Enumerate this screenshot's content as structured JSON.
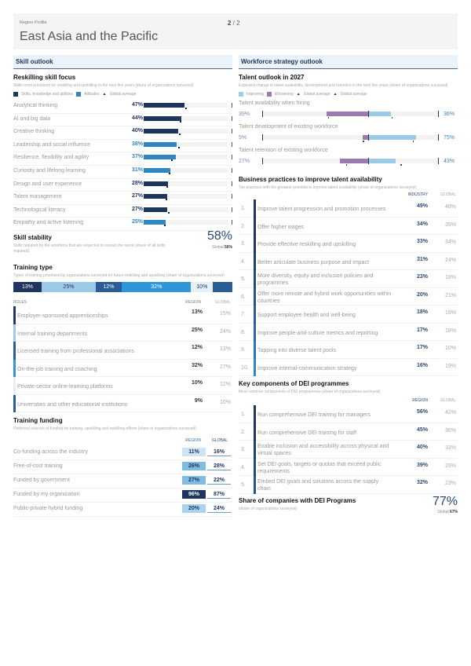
{
  "header": {
    "kicker": "Region Profile",
    "title": "East Asia and the Pacific",
    "page_current": "2",
    "page_sep": " / 2"
  },
  "skill_outlook": {
    "section_title": "Skill outlook",
    "reskilling": {
      "title": "Reskilling skill focus",
      "subtitle": "Skills most prioritized for reskilling and upskilling in the next five years (share of organizations surveyed)",
      "legend": [
        {
          "label": "Skills, knowledge and abilities",
          "color": "#1e3560"
        },
        {
          "label": "Attitudes",
          "color": "#2f86c4"
        },
        {
          "label": "Global average",
          "marker": "▲"
        }
      ],
      "items": [
        {
          "label": "Analytical thinking",
          "value": 47,
          "value_text": "47%",
          "global": 48,
          "type": "ska"
        },
        {
          "label": "AI and big data",
          "value": 44,
          "value_text": "44%",
          "global": 42,
          "type": "ska"
        },
        {
          "label": "Creative thinking",
          "value": 40,
          "value_text": "40%",
          "global": 41,
          "type": "ska"
        },
        {
          "label": "Leadership and social influence",
          "value": 38,
          "value_text": "38%",
          "global": 40,
          "type": "att"
        },
        {
          "label": "Resilience, flexibility and agility",
          "value": 37,
          "value_text": "37%",
          "global": 32,
          "type": "att"
        },
        {
          "label": "Curiosity and lifelong learning",
          "value": 31,
          "value_text": "31%",
          "global": 29,
          "type": "att"
        },
        {
          "label": "Design and user experience",
          "value": 28,
          "value_text": "28%",
          "global": 26,
          "type": "ska"
        },
        {
          "label": "Talent management",
          "value": 27,
          "value_text": "27%",
          "global": 25,
          "type": "ska"
        },
        {
          "label": "Technological literacy",
          "value": 27,
          "value_text": "27%",
          "global": 28,
          "type": "ska"
        },
        {
          "label": "Empathy and active listening",
          "value": 25,
          "value_text": "25%",
          "global": 24,
          "type": "att"
        }
      ],
      "colors": {
        "ska": "#1e3560",
        "att": "#2f86c4"
      }
    },
    "stability": {
      "title": "Skill stability",
      "subtitle": "Skills required by the workforce that are expected to remain the same (share of all skills required)",
      "value": "58%",
      "global_label": "Global",
      "global_value": "56%"
    },
    "training_type": {
      "title": "Training type",
      "subtitle": "Types of training prioritized by organizations surveyed for future reskilling and upskilling (share of organizations surveyed)",
      "segments": [
        {
          "value": 13,
          "label": "13%",
          "color": "#1e3560",
          "text": "#ffffff"
        },
        {
          "value": 25,
          "label": "25%",
          "color": "#9ccbe8",
          "text": "#1e3560"
        },
        {
          "value": 12,
          "label": "12%",
          "color": "#2a5c96",
          "text": "#ffffff"
        },
        {
          "value": 32,
          "label": "32%",
          "color": "#2f96d8",
          "text": "#ffffff"
        },
        {
          "value": 10,
          "label": "10%",
          "color": "#e6eef6",
          "text": "#1e3560"
        },
        {
          "value": 9,
          "label": "",
          "color": "#2a5c96",
          "text": "#ffffff"
        }
      ],
      "col_roles": "ROLES",
      "col_region": "REGION",
      "col_global": "GLOBAL",
      "rows": [
        {
          "label": "Employer-sponsored apprenticeships",
          "region": "13%",
          "global": "15%",
          "color": "#1e3560"
        },
        {
          "label": "Internal training departments",
          "region": "25%",
          "global": "24%",
          "color": "#9ccbe8"
        },
        {
          "label": "Licensed training from professional associations",
          "region": "12%",
          "global": "13%",
          "color": "#2a5c96"
        },
        {
          "label": "On-the-job training and coaching",
          "region": "32%",
          "global": "27%",
          "color": "#2f96d8"
        },
        {
          "label": "Private-sector online-learning platforms",
          "region": "10%",
          "global": "12%",
          "color": "#e6eef6"
        },
        {
          "label": "Universities and other educational institutions",
          "region": "9%",
          "global": "10%",
          "color": "#2a5c96"
        }
      ]
    },
    "funding": {
      "title": "Training funding",
      "subtitle": "Preferred sources of funding for training, upskilling and reskilling efforts (share of organizations surveyed)",
      "col_region": "REGION",
      "col_global": "GLOBAL",
      "rows": [
        {
          "label": "Co-funding across the industry",
          "region": "11%",
          "global": "16%",
          "bg": "#cfe4f2",
          "fg": "#1e3560"
        },
        {
          "label": "Free-of-cost training",
          "region": "26%",
          "global": "28%",
          "bg": "#7fbde3",
          "fg": "#1e3560"
        },
        {
          "label": "Funded by government",
          "region": "27%",
          "global": "22%",
          "bg": "#7fbde3",
          "fg": "#1e3560"
        },
        {
          "label": "Funded by my organization",
          "region": "96%",
          "global": "87%",
          "bg": "#1e3560",
          "fg": "#ffffff"
        },
        {
          "label": "Public-private hybrid funding",
          "region": "20%",
          "global": "24%",
          "bg": "#a9d3ee",
          "fg": "#1e3560"
        }
      ]
    }
  },
  "workforce": {
    "section_title": "Workforce strategy outlook",
    "talent_outlook": {
      "title": "Talent outlook in 2027",
      "subtitle": "Expected change in talent availability, development and retention in the next five years (share of organizations surveyed)",
      "legend": [
        {
          "label": "Improving",
          "color": "#9ccbe8"
        },
        {
          "label": "Worsening",
          "color": "#9a7bb0"
        },
        {
          "label": "Global average",
          "marker": "▲"
        },
        {
          "label": "Global average",
          "marker": "▲"
        }
      ],
      "items": [
        {
          "label": "Talent availability when hiring",
          "worsening": 39,
          "worsening_text": "39%",
          "improving": 36,
          "improving_text": "36%",
          "global_worsening": 38,
          "global_improving": 37
        },
        {
          "label": "Talent development of existing workforce",
          "worsening": 5,
          "worsening_text": "5%",
          "improving": 75,
          "improving_text": "75%",
          "global_worsening": 5,
          "global_improving": 70
        },
        {
          "label": "Talent retention of existing workforce",
          "worsening": 27,
          "worsening_text": "27%",
          "improving": 43,
          "improving_text": "43%",
          "global_worsening": 21,
          "global_improving": 51
        }
      ]
    },
    "business_practices": {
      "title": "Business practices to improve talent availability",
      "subtitle": "Top practices with the greatest potential to improve talent availability (share of organizations surveyed)",
      "col_region": "INDUSTRY",
      "col_global": "GLOBAL",
      "rows": [
        {
          "num": "1.",
          "label": "Improve talent progression and promotion processes",
          "region": "49%",
          "global": "48%",
          "color": "#1e3560"
        },
        {
          "num": "2.",
          "label": "Offer higher wages",
          "region": "34%",
          "global": "35%",
          "color": "#1e3560"
        },
        {
          "num": "3.",
          "label": "Provide effective reskilling and upskilling",
          "region": "33%",
          "global": "34%",
          "color": "#1e3560"
        },
        {
          "num": "4.",
          "label": "Better articulate business purpose and impact",
          "region": "31%",
          "global": "24%",
          "color": "#1f3f6e"
        },
        {
          "num": "5.",
          "label": "More diversity, equity and inclusion policies and programmes",
          "region": "23%",
          "global": "18%",
          "color": "#22497e"
        },
        {
          "num": "6.",
          "label": "Offer more remote and hybrid work opportunities within countries",
          "region": "20%",
          "global": "21%",
          "color": "#24538e"
        },
        {
          "num": "7.",
          "label": "Support employee health and well-being",
          "region": "18%",
          "global": "18%",
          "color": "#265d9e"
        },
        {
          "num": "8.",
          "label": "Improve people-and-culture metrics and reporting",
          "region": "17%",
          "global": "18%",
          "color": "#2868ae"
        },
        {
          "num": "9.",
          "label": "Tapping into diverse talent pools",
          "region": "17%",
          "global": "10%",
          "color": "#2a76be"
        },
        {
          "num": "10.",
          "label": "Improve internal-communication strategy",
          "region": "16%",
          "global": "19%",
          "color": "#2f86cc"
        }
      ]
    },
    "dei": {
      "title": "Key components of DEI programmes",
      "subtitle": "Most common components of DEI programmes (share of organizations surveyed)",
      "col_region": "REGION",
      "col_global": "GLOBAL",
      "rows": [
        {
          "num": "1.",
          "label": "Run comprehensive DEI training for managers",
          "region": "56%",
          "global": "42%",
          "color": "#1e3560"
        },
        {
          "num": "2.",
          "label": "Run comprehensive DEI training for staff",
          "region": "45%",
          "global": "36%",
          "color": "#1e3560"
        },
        {
          "num": "3.",
          "label": "Enable inclusion and accessibility across physical and virtual spaces",
          "region": "40%",
          "global": "33%",
          "color": "#1f3f6e"
        },
        {
          "num": "4.",
          "label": "Set DEI goals, targets or quotas that exceed public requirements",
          "region": "39%",
          "global": "26%",
          "color": "#22497e"
        },
        {
          "num": "5.",
          "label": "Embed DEI goals and solutions across the supply chain",
          "region": "32%",
          "global": "23%",
          "color": "#24538e"
        }
      ]
    },
    "dei_share": {
      "title": "Share of companies with DEI Programs",
      "subtitle": "(share of organizations surveyed)",
      "value": "77%",
      "global_label": "Global",
      "global_value": "67%"
    }
  }
}
